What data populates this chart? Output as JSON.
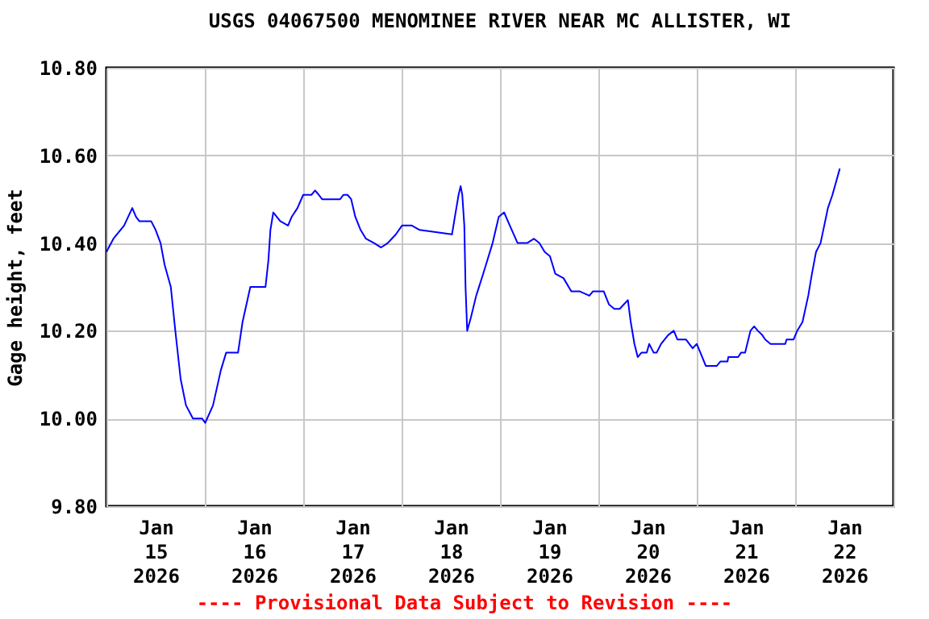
{
  "chart_data": {
    "type": "line",
    "title": "USGS 04067500 MENOMINEE RIVER NEAR MC ALLISTER, WI",
    "ylabel": "Gage height, feet",
    "annotations": [
      "---- Provisional Data Subject to Revision ----"
    ],
    "x": [
      "2026-01-15T00:00",
      "2026-01-15T01:42",
      "2026-01-15T04:18",
      "2026-01-15T06:18",
      "2026-01-15T07:12",
      "2026-01-15T08:00",
      "2026-01-15T10:54",
      "2026-01-15T12:00",
      "2026-01-15T13:12",
      "2026-01-15T14:12",
      "2026-01-15T15:42",
      "2026-01-15T16:48",
      "2026-01-15T18:06",
      "2026-01-15T19:24",
      "2026-01-15T21:06",
      "2026-01-15T23:18",
      "2026-01-16T00:06",
      "2026-01-16T02:00",
      "2026-01-16T03:54",
      "2026-01-16T05:12",
      "2026-01-16T08:06",
      "2026-01-16T09:12",
      "2026-01-16T11:06",
      "2026-01-16T11:48",
      "2026-01-16T14:48",
      "2026-01-16T15:30",
      "2026-01-16T16:00",
      "2026-01-16T16:42",
      "2026-01-16T18:24",
      "2026-01-16T20:18",
      "2026-01-16T21:12",
      "2026-01-16T22:36",
      "2026-01-17T00:00",
      "2026-01-17T02:00",
      "2026-01-17T02:54",
      "2026-01-17T03:48",
      "2026-01-17T04:36",
      "2026-01-17T09:00",
      "2026-01-17T09:48",
      "2026-01-17T10:48",
      "2026-01-17T11:42",
      "2026-01-17T12:42",
      "2026-01-17T14:00",
      "2026-01-17T15:18",
      "2026-01-17T17:18",
      "2026-01-17T19:00",
      "2026-01-17T20:36",
      "2026-01-17T22:36",
      "2026-01-18T00:06",
      "2026-01-18T02:30",
      "2026-01-18T04:24",
      "2026-01-18T12:18",
      "2026-01-18T13:00",
      "2026-01-18T13:54",
      "2026-01-18T14:24",
      "2026-01-18T14:48",
      "2026-01-18T15:18",
      "2026-01-18T15:36",
      "2026-01-18T16:00",
      "2026-01-18T16:54",
      "2026-01-18T18:12",
      "2026-01-18T19:54",
      "2026-01-18T22:12",
      "2026-01-18T23:42",
      "2026-01-19T01:00",
      "2026-01-19T02:24",
      "2026-01-19T04:18",
      "2026-01-19T06:36",
      "2026-01-19T08:18",
      "2026-01-19T09:36",
      "2026-01-19T10:54",
      "2026-01-19T12:12",
      "2026-01-19T13:30",
      "2026-01-19T15:30",
      "2026-01-19T17:24",
      "2026-01-19T19:24",
      "2026-01-19T21:48",
      "2026-01-19T22:42",
      "2026-01-20T01:18",
      "2026-01-20T02:36",
      "2026-01-20T03:54",
      "2026-01-20T05:12",
      "2026-01-20T06:12",
      "2026-01-20T07:12",
      "2026-01-20T07:54",
      "2026-01-20T08:48",
      "2026-01-20T09:36",
      "2026-01-20T10:30",
      "2026-01-20T11:48",
      "2026-01-20T12:24",
      "2026-01-20T13:30",
      "2026-01-20T14:12",
      "2026-01-20T15:18",
      "2026-01-20T17:00",
      "2026-01-20T18:24",
      "2026-01-20T19:18",
      "2026-01-20T21:24",
      "2026-01-20T23:00",
      "2026-01-21T00:00",
      "2026-01-21T00:54",
      "2026-01-21T02:12",
      "2026-01-21T04:54",
      "2026-01-21T05:48",
      "2026-01-21T07:30",
      "2026-01-21T07:42",
      "2026-01-21T10:06",
      "2026-01-21T10:48",
      "2026-01-21T11:48",
      "2026-01-21T13:06",
      "2026-01-21T14:00",
      "2026-01-21T14:54",
      "2026-01-21T16:00",
      "2026-01-21T16:42",
      "2026-01-21T18:00",
      "2026-01-21T21:36",
      "2026-01-21T21:54",
      "2026-01-21T23:36",
      "2026-01-22T00:30",
      "2026-01-22T01:48",
      "2026-01-22T03:12",
      "2026-01-22T04:06",
      "2026-01-22T05:06",
      "2026-01-22T06:12",
      "2026-01-22T07:06",
      "2026-01-22T08:00",
      "2026-01-22T09:06",
      "2026-01-22T10:00",
      "2026-01-22T10:54"
    ],
    "series": [
      {
        "color": "#0000ff",
        "values": [
          10.38,
          10.41,
          10.44,
          10.48,
          10.46,
          10.45,
          10.45,
          10.43,
          10.4,
          10.35,
          10.3,
          10.2,
          10.09,
          10.03,
          10.0,
          10.0,
          9.99,
          10.03,
          10.11,
          10.15,
          10.15,
          10.22,
          10.3,
          10.3,
          10.3,
          10.36,
          10.43,
          10.47,
          10.45,
          10.44,
          10.46,
          10.48,
          10.51,
          10.51,
          10.52,
          10.51,
          10.5,
          10.5,
          10.51,
          10.51,
          10.5,
          10.46,
          10.43,
          10.41,
          10.4,
          10.39,
          10.4,
          10.42,
          10.44,
          10.44,
          10.43,
          10.42,
          10.46,
          10.51,
          10.53,
          10.51,
          10.44,
          10.3,
          10.2,
          10.23,
          10.28,
          10.33,
          10.4,
          10.46,
          10.47,
          10.44,
          10.4,
          10.4,
          10.41,
          10.4,
          10.38,
          10.37,
          10.33,
          10.32,
          10.29,
          10.29,
          10.28,
          10.29,
          10.29,
          10.26,
          10.25,
          10.25,
          10.26,
          10.27,
          10.22,
          10.17,
          10.14,
          10.15,
          10.15,
          10.17,
          10.15,
          10.15,
          10.17,
          10.19,
          10.2,
          10.18,
          10.18,
          10.16,
          10.17,
          10.15,
          10.12,
          10.12,
          10.13,
          10.13,
          10.14,
          10.14,
          10.15,
          10.15,
          10.2,
          10.21,
          10.2,
          10.19,
          10.18,
          10.17,
          10.17,
          10.18,
          10.18,
          10.2,
          10.22,
          10.28,
          10.33,
          10.38,
          10.4,
          10.44,
          10.48,
          10.51,
          10.54,
          10.57
        ]
      }
    ],
    "xlim": [
      "2026-01-15T00:00",
      "2026-01-23T00:00"
    ],
    "xticks": [
      {
        "value": "2026-01-15T00:00",
        "label": null
      },
      {
        "value": "2026-01-15T12:00",
        "label": "Jan 15 2026"
      },
      {
        "value": "2026-01-16T00:00",
        "label": null
      },
      {
        "value": "2026-01-16T12:00",
        "label": "Jan 16 2026"
      },
      {
        "value": "2026-01-17T00:00",
        "label": null
      },
      {
        "value": "2026-01-17T12:00",
        "label": "Jan 17 2026"
      },
      {
        "value": "2026-01-18T00:00",
        "label": null
      },
      {
        "value": "2026-01-18T12:00",
        "label": "Jan 18 2026"
      },
      {
        "value": "2026-01-19T00:00",
        "label": null
      },
      {
        "value": "2026-01-19T12:00",
        "label": "Jan 19 2026"
      },
      {
        "value": "2026-01-20T00:00",
        "label": null
      },
      {
        "value": "2026-01-20T12:00",
        "label": "Jan 20 2026"
      },
      {
        "value": "2026-01-21T00:00",
        "label": null
      },
      {
        "value": "2026-01-21T12:00",
        "label": "Jan 21 2026"
      },
      {
        "value": "2026-01-22T00:00",
        "label": null
      },
      {
        "value": "2026-01-22T12:00",
        "label": "Jan 22 2026"
      },
      {
        "value": "2026-01-23T00:00",
        "label": null
      }
    ],
    "ylim": [
      9.8,
      10.8
    ],
    "yticks": [
      {
        "value": 9.8,
        "label": "9.80"
      },
      {
        "value": 10.0,
        "label": "10.00"
      },
      {
        "value": 10.2,
        "label": "10.20"
      },
      {
        "value": 10.4,
        "label": "10.40"
      },
      {
        "value": 10.6,
        "label": "10.60"
      },
      {
        "value": 10.8,
        "label": "10.80"
      }
    ],
    "grid": true,
    "marker": "none",
    "line_style": "solid"
  }
}
